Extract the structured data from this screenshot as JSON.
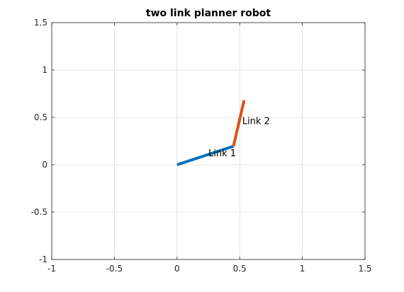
{
  "chart_data": {
    "type": "line",
    "title": "two link planner robot",
    "xlabel": "",
    "ylabel": "",
    "xlim": [
      -1,
      1.5
    ],
    "ylim": [
      -1,
      1.5
    ],
    "xticks": [
      -1,
      -0.5,
      0,
      0.5,
      1,
      1.5
    ],
    "xtick_labels": [
      "-1",
      "-0.5",
      "0",
      "0.5",
      "1",
      "1.5"
    ],
    "yticks": [
      -1,
      -0.5,
      0,
      0.5,
      1,
      1.5
    ],
    "ytick_labels": [
      "-1",
      "-0.5",
      "0",
      "0.5",
      "1",
      "1.5"
    ],
    "grid": true,
    "series": [
      {
        "name": "Link 1",
        "x": [
          0,
          0.45
        ],
        "y": [
          0,
          0.195
        ],
        "color": "#0072BD"
      },
      {
        "name": "Link 2",
        "x": [
          0.45,
          0.535
        ],
        "y": [
          0.195,
          0.68
        ],
        "color": "#D95319"
      }
    ],
    "annotations": [
      {
        "text": "Link 1",
        "x": 0.25,
        "y": 0.09
      },
      {
        "text": "Link 2",
        "x": 0.52,
        "y": 0.43
      }
    ]
  }
}
